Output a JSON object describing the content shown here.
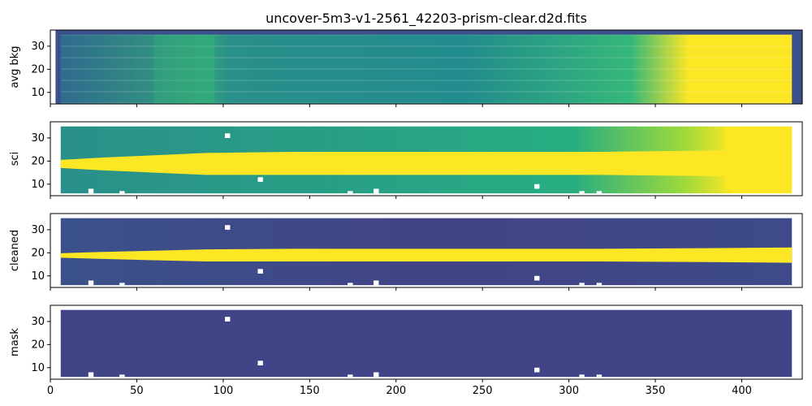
{
  "title": "uncover-5m3-v1-2561_42203-prism-clear.d2d.fits",
  "colors": {
    "viridis_dark": "#3b518b",
    "viridis_deep": "#414487",
    "viridis_teal": "#21918c",
    "viridis_green": "#27ad81",
    "viridis_yellow": "#fde725",
    "axis": "#000000"
  },
  "chart_data": [
    {
      "type": "heatmap",
      "panel": "avg-bkg",
      "ylabel": "avg bkg",
      "xlim": [
        0,
        435
      ],
      "ylim": [
        5,
        37
      ],
      "x_ticks": [
        0,
        50,
        100,
        150,
        200,
        250,
        300,
        350,
        400
      ],
      "y_ticks": [
        10,
        20,
        30
      ],
      "data_extent_x": [
        6,
        429
      ],
      "data_extent_y": [
        5,
        35
      ],
      "x_tick_labels_shown": false,
      "description_of_values": "horizontal striped background; brightens toward x>370"
    },
    {
      "type": "heatmap",
      "panel": "sci",
      "ylabel": "sci",
      "xlim": [
        0,
        435
      ],
      "ylim": [
        5,
        37
      ],
      "x_ticks": [
        0,
        50,
        100,
        150,
        200,
        250,
        300,
        350,
        400
      ],
      "y_ticks": [
        10,
        20,
        30
      ],
      "data_extent_x": [
        6,
        429
      ],
      "data_extent_y": [
        6,
        35
      ],
      "trace_center_y": 18,
      "x_tick_labels_shown": false
    },
    {
      "type": "heatmap",
      "panel": "cleaned",
      "ylabel": "cleaned",
      "xlim": [
        0,
        435
      ],
      "ylim": [
        5,
        37
      ],
      "x_ticks": [
        0,
        50,
        100,
        150,
        200,
        250,
        300,
        350,
        400
      ],
      "y_ticks": [
        10,
        20,
        30
      ],
      "data_extent_x": [
        6,
        429
      ],
      "data_extent_y": [
        6,
        35
      ],
      "trace_center_y": 18,
      "x_tick_labels_shown": false
    },
    {
      "type": "heatmap",
      "panel": "mask",
      "ylabel": "mask",
      "xlim": [
        0,
        435
      ],
      "ylim": [
        5,
        37
      ],
      "x_ticks": [
        0,
        50,
        100,
        150,
        200,
        250,
        300,
        350,
        400
      ],
      "y_ticks": [
        10,
        20,
        30
      ],
      "data_extent_x": [
        6,
        429
      ],
      "data_extent_y": [
        6,
        35
      ],
      "x_tick_labels_shown": true
    }
  ]
}
